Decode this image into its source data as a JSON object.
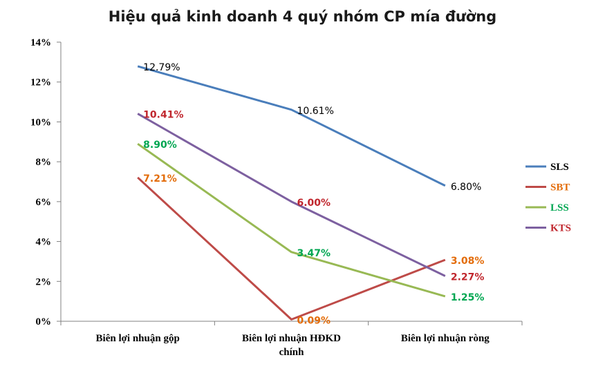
{
  "chart_data": {
    "type": "line",
    "title": "Hiệu quả kinh doanh 4 quý nhóm CP mía đường",
    "categories": [
      [
        "Biên lợi nhuận  gộp"
      ],
      [
        "Biên lợi nhuận  HĐKD",
        "chính"
      ],
      [
        "Biên lợi nhuận  ròng"
      ]
    ],
    "y_ticks": [
      "0%",
      "2%",
      "4%",
      "6%",
      "8%",
      "10%",
      "12%",
      "14%"
    ],
    "ylim": [
      0,
      14
    ],
    "grid": false,
    "legend_position": "right",
    "series": [
      {
        "name": "SLS",
        "color": "#4a7ebb",
        "values": [
          12.79,
          10.61,
          6.8
        ],
        "labels": [
          "12.79%",
          "10.61%",
          "6.80%"
        ],
        "label_color": "#000000"
      },
      {
        "name": "SBT",
        "color": "#be4b48",
        "values": [
          7.21,
          0.09,
          3.08
        ],
        "labels": [
          "7.21%",
          "0.09%",
          "3.08%"
        ],
        "label_color": "#e36c09"
      },
      {
        "name": "LSS",
        "color": "#98b954",
        "values": [
          8.9,
          3.47,
          1.25
        ],
        "labels": [
          "8.90%",
          "3.47%",
          "1.25%"
        ],
        "label_color": "#00a651"
      },
      {
        "name": "KTS",
        "color": "#7d60a0",
        "values": [
          10.41,
          6.0,
          2.27
        ],
        "labels": [
          "10.41%",
          "6.00%",
          "2.27%"
        ],
        "label_color": "#c0262d"
      }
    ]
  }
}
